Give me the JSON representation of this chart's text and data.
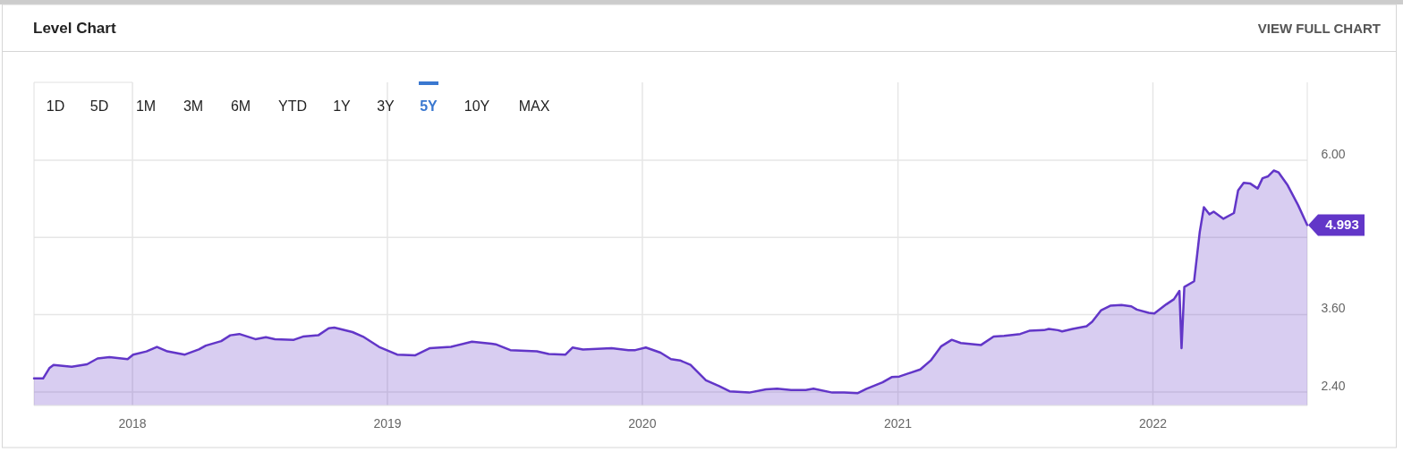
{
  "chart_data": {
    "type": "area",
    "title": "Level Chart",
    "annotations": [
      "VIEW FULL CHART",
      "1D",
      "5D",
      "1M",
      "3M",
      "6M",
      "YTD",
      "1Y",
      "3Y",
      "5Y",
      "10Y",
      "MAX",
      {
        "text": "4.993",
        "x": "2022-08-10",
        "y": 4.993
      }
    ],
    "series": [
      {
        "color": "#6236c8",
        "x": [
          "2017-08-13",
          "2017-08-26",
          "2017-09-04",
          "2017-09-10",
          "2017-10-06",
          "2017-10-28",
          "2017-11-12",
          "2017-11-29",
          "2017-12-25",
          "2018-01-02",
          "2018-01-21",
          "2018-02-05",
          "2018-02-20",
          "2018-03-17",
          "2018-04-06",
          "2018-04-16",
          "2018-05-08",
          "2018-05-21",
          "2018-06-03",
          "2018-06-26",
          "2018-07-11",
          "2018-07-24",
          "2018-08-20",
          "2018-09-02",
          "2018-09-24",
          "2018-10-09",
          "2018-10-17",
          "2018-11-12",
          "2018-11-27",
          "2018-12-20",
          "2019-01-15",
          "2019-02-10",
          "2019-03-03",
          "2019-04-02",
          "2019-05-02",
          "2019-05-30",
          "2019-06-05",
          "2019-06-26",
          "2019-08-03",
          "2019-08-20",
          "2019-09-13",
          "2019-09-23",
          "2019-10-08",
          "2019-11-18",
          "2019-12-12",
          "2019-12-22",
          "2020-01-06",
          "2020-01-27",
          "2020-02-11",
          "2020-02-24",
          "2020-03-10",
          "2020-04-01",
          "2020-04-20",
          "2020-05-05",
          "2020-06-02",
          "2020-06-26",
          "2020-07-12",
          "2020-08-01",
          "2020-08-22",
          "2020-09-02",
          "2020-09-29",
          "2020-10-16",
          "2020-11-04",
          "2020-11-17",
          "2020-12-10",
          "2020-12-23",
          "2021-01-03",
          "2021-02-02",
          "2021-02-17",
          "2021-03-04",
          "2021-03-19",
          "2021-04-01",
          "2021-04-30",
          "2021-05-18",
          "2021-06-02",
          "2021-06-25",
          "2021-07-08",
          "2021-07-29",
          "2021-08-05",
          "2021-08-18",
          "2021-08-24",
          "2021-09-08",
          "2021-09-28",
          "2021-10-06",
          "2021-10-19",
          "2021-11-01",
          "2021-11-17",
          "2021-12-01",
          "2021-12-09",
          "2021-12-26",
          "2022-01-03",
          "2022-01-20",
          "2022-01-31",
          "2022-02-08",
          "2022-02-11",
          "2022-02-15",
          "2022-03-01",
          "2022-03-09",
          "2022-03-15",
          "2022-03-23",
          "2022-03-29",
          "2022-04-12",
          "2022-04-27",
          "2022-05-03",
          "2022-05-11",
          "2022-05-20",
          "2022-05-31",
          "2022-06-07",
          "2022-06-15",
          "2022-06-23",
          "2022-06-30",
          "2022-07-13",
          "2022-07-28",
          "2022-08-10"
        ],
        "values": [
          2.61,
          2.61,
          2.77,
          2.82,
          2.79,
          2.83,
          2.92,
          2.94,
          2.91,
          2.98,
          3.03,
          3.1,
          3.03,
          2.98,
          3.06,
          3.12,
          3.19,
          3.28,
          3.3,
          3.22,
          3.25,
          3.22,
          3.21,
          3.26,
          3.28,
          3.39,
          3.4,
          3.33,
          3.26,
          3.1,
          2.98,
          2.97,
          3.08,
          3.1,
          3.18,
          3.15,
          3.14,
          3.05,
          3.03,
          2.99,
          2.98,
          3.09,
          3.06,
          3.08,
          3.05,
          3.05,
          3.09,
          3.01,
          2.91,
          2.89,
          2.82,
          2.58,
          2.49,
          2.41,
          2.39,
          2.44,
          2.45,
          2.43,
          2.43,
          2.45,
          2.39,
          2.39,
          2.38,
          2.45,
          2.55,
          2.63,
          2.64,
          2.75,
          2.89,
          3.11,
          3.21,
          3.16,
          3.13,
          3.26,
          3.27,
          3.3,
          3.35,
          3.36,
          3.38,
          3.36,
          3.34,
          3.38,
          3.42,
          3.49,
          3.67,
          3.74,
          3.75,
          3.73,
          3.68,
          3.63,
          3.62,
          3.76,
          3.84,
          3.97,
          3.08,
          4.03,
          4.12,
          4.88,
          5.27,
          5.16,
          5.2,
          5.09,
          5.18,
          5.53,
          5.65,
          5.64,
          5.56,
          5.72,
          5.75,
          5.84,
          5.81,
          5.61,
          5.3,
          4.993
        ]
      }
    ],
    "xlim": [
      "2017-08-13",
      "2022-08-10"
    ],
    "xticks": [
      {
        "value": "2018",
        "label": "2018"
      },
      {
        "value": "2019",
        "label": "2019"
      },
      {
        "value": "2020",
        "label": "2020"
      },
      {
        "value": "2021",
        "label": "2021"
      },
      {
        "value": "2022",
        "label": "2022"
      }
    ],
    "ylim": [
      2.19,
      7.21
    ],
    "yticks": [
      {
        "value": 2.4,
        "label": "2.40"
      },
      {
        "value": 3.6,
        "label": "3.60"
      },
      {
        "value": 4.8,
        "label": null
      },
      {
        "value": 6,
        "label": "6.00"
      }
    ],
    "grid": true
  }
}
